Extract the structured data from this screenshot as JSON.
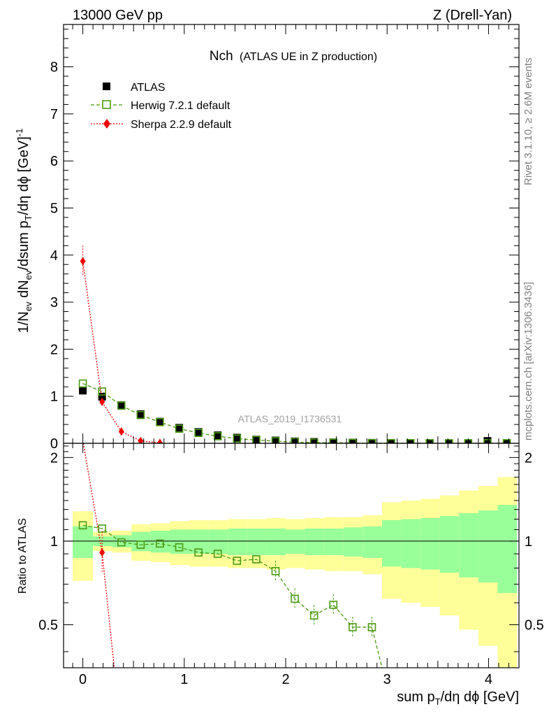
{
  "header": {
    "left": "13000 GeV pp",
    "right": "Z (Drell-Yan)"
  },
  "side_labels": {
    "rivet": "Rivet 3.1.10, ≥ 2.6M events",
    "mcplots": "mcplots.cern.ch [arXiv:1306.3436]"
  },
  "chart_data": [
    {
      "type": "scatter",
      "title": "Nch",
      "subtitle": "(ATLAS UE in Z production)",
      "ylabel": "1/N_ev dN_ev/dsum p_T/dη dϕ [GeV]^-1",
      "xlabel": "sum p_T/dη dϕ [GeV]",
      "watermark": "ATLAS_2019_I1736531",
      "xlim": [
        -0.19,
        4.3
      ],
      "ylim": [
        0,
        8.9
      ],
      "yticks": [
        0,
        1,
        2,
        3,
        4,
        5,
        6,
        7,
        8
      ],
      "xticks": [
        0,
        1,
        2,
        3,
        4
      ],
      "legend_position": "top-left",
      "series": [
        {
          "name": "ATLAS",
          "color": "#000000",
          "marker": "filled-square",
          "x": [
            0.0,
            0.19,
            0.38,
            0.57,
            0.76,
            0.95,
            1.14,
            1.33,
            1.52,
            1.71,
            1.9,
            2.09,
            2.28,
            2.47,
            2.66,
            2.85,
            3.04,
            3.23,
            3.42,
            3.61,
            3.8,
            3.99,
            4.18
          ],
          "y": [
            1.12,
            0.99,
            0.81,
            0.62,
            0.46,
            0.33,
            0.24,
            0.17,
            0.12,
            0.08,
            0.06,
            0.04,
            0.03,
            0.02,
            0.015,
            0.01,
            0.008,
            0.006,
            0.005,
            0.004,
            0.003,
            0.05,
            0.002
          ]
        },
        {
          "name": "Herwig 7.2.1 default",
          "color": "#4a9a12",
          "marker": "open-square",
          "x": [
            0.0,
            0.19,
            0.38,
            0.57,
            0.76,
            0.95,
            1.14,
            1.33,
            1.52,
            1.71,
            1.9,
            2.09,
            2.28,
            2.47,
            2.66,
            2.85,
            3.04,
            3.23,
            3.42,
            3.61,
            3.8,
            3.99,
            4.18
          ],
          "y": [
            1.27,
            1.1,
            0.8,
            0.6,
            0.45,
            0.31,
            0.22,
            0.15,
            0.1,
            0.07,
            0.045,
            0.025,
            0.016,
            0.012,
            0.007,
            0.005,
            0.004,
            0.003,
            0.002,
            0.002,
            0.002,
            0.002,
            0.002
          ]
        },
        {
          "name": "Sherpa 2.2.9 default",
          "color": "#ee0000",
          "marker": "diamond",
          "x": [
            0.0,
            0.19,
            0.38,
            0.57,
            0.76
          ],
          "y": [
            3.87,
            0.88,
            0.25,
            0.05,
            0.01
          ]
        }
      ]
    },
    {
      "type": "line",
      "ylabel": "Ratio to ATLAS",
      "xlim": [
        -0.19,
        4.3
      ],
      "ylim": [
        0.35,
        2.25
      ],
      "yticks": [
        0.5,
        1,
        2
      ],
      "bin_edges": [
        -0.1,
        0.1,
        0.29,
        0.48,
        0.67,
        0.86,
        1.05,
        1.24,
        1.43,
        1.62,
        1.81,
        2.0,
        2.19,
        2.38,
        2.57,
        2.76,
        2.95,
        3.14,
        3.33,
        3.52,
        3.71,
        3.9,
        4.09,
        4.28
      ],
      "band_inner": [
        0.13,
        0.04,
        0.05,
        0.08,
        0.09,
        0.1,
        0.1,
        0.1,
        0.11,
        0.11,
        0.11,
        0.1,
        0.11,
        0.11,
        0.12,
        0.13,
        0.19,
        0.2,
        0.21,
        0.23,
        0.26,
        0.29,
        0.35
      ],
      "band_outer": [
        0.28,
        0.08,
        0.09,
        0.15,
        0.16,
        0.18,
        0.19,
        0.19,
        0.2,
        0.2,
        0.21,
        0.2,
        0.21,
        0.22,
        0.22,
        0.24,
        0.38,
        0.4,
        0.42,
        0.46,
        0.52,
        0.58,
        0.7
      ],
      "series": [
        {
          "name": "Herwig 7.2.1 default",
          "color": "#4a9a12",
          "x": [
            0.0,
            0.19,
            0.38,
            0.57,
            0.76,
            0.95,
            1.14,
            1.33,
            1.52,
            1.71,
            1.9,
            2.09,
            2.28,
            2.47,
            2.66,
            2.85,
            2.95
          ],
          "y": [
            1.14,
            1.11,
            0.99,
            0.97,
            0.98,
            0.95,
            0.91,
            0.9,
            0.85,
            0.86,
            0.78,
            0.62,
            0.54,
            0.59,
            0.49,
            0.49,
            0.35
          ]
        },
        {
          "name": "Sherpa 2.2.9 default",
          "color": "#ee0000",
          "x": [
            0.0,
            0.19,
            0.31
          ],
          "y": [
            2.3,
            0.91,
            0.35
          ]
        }
      ]
    }
  ]
}
